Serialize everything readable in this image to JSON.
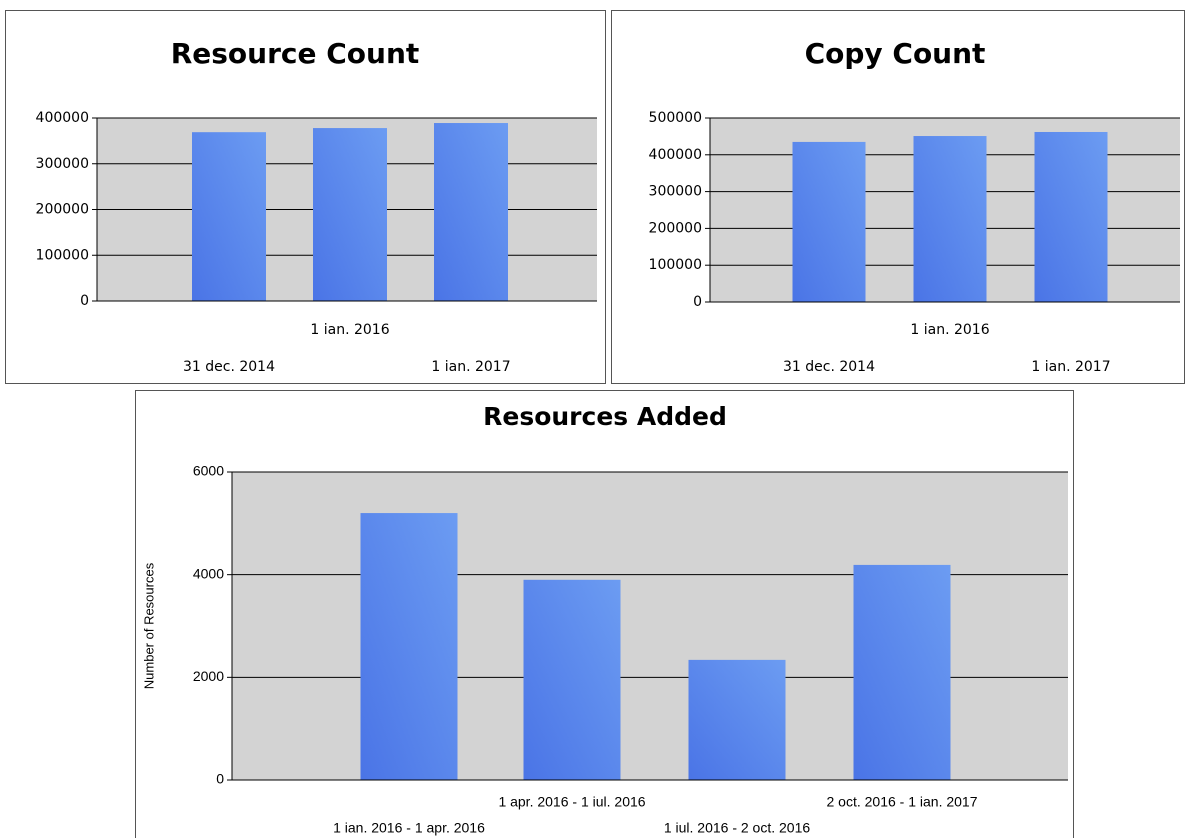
{
  "chart_data": [
    {
      "type": "bar",
      "title": "Resource Count",
      "categories": [
        "31 dec. 2014",
        "1 ian. 2016",
        "1 ian. 2017"
      ],
      "values": [
        369000,
        378000,
        389000
      ],
      "color": "#4a74e6",
      "ylim": [
        0,
        400000
      ],
      "yticks": [
        0,
        100000,
        200000,
        300000,
        400000
      ],
      "grid": true
    },
    {
      "type": "bar",
      "title": "Copy Count",
      "categories": [
        "31 dec. 2014",
        "1 ian. 2016",
        "1 ian. 2017"
      ],
      "values": [
        435000,
        451000,
        462000
      ],
      "color": "#4a74e6",
      "ylim": [
        0,
        500000
      ],
      "yticks": [
        0,
        100000,
        200000,
        300000,
        400000,
        500000
      ],
      "grid": true
    },
    {
      "type": "bar",
      "title": "Resources Added",
      "y_label": "Number of Resources",
      "categories": [
        "1 ian. 2016 - 1 apr. 2016",
        "1 apr. 2016 - 1 iul. 2016",
        "1 iul. 2016 - 2 oct. 2016",
        "2 oct. 2016 - 1 ian. 2017"
      ],
      "values": [
        5200,
        3900,
        2340,
        4190
      ],
      "color": "#4a74e6",
      "ylim": [
        0,
        6000
      ],
      "yticks": [
        0,
        2000,
        4000,
        6000
      ],
      "grid": true
    }
  ]
}
